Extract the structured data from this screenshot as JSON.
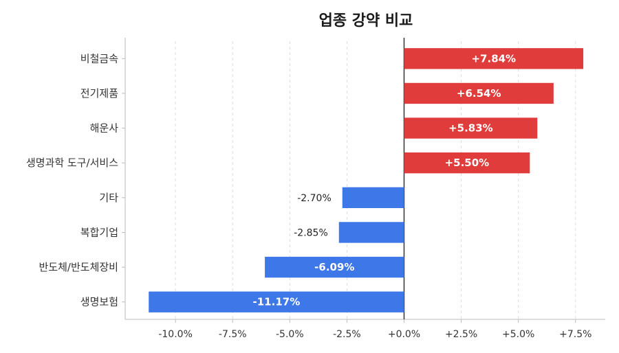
{
  "chart_data": {
    "type": "bar",
    "orientation": "horizontal",
    "title": "업종 강약 비교",
    "categories": [
      "비철금속",
      "전기제품",
      "해운사",
      "생명과학 도구/서비스",
      "기타",
      "복합기업",
      "반도체/반도체장비",
      "생명보험"
    ],
    "values": [
      7.84,
      6.54,
      5.83,
      5.5,
      -2.7,
      -2.85,
      -6.09,
      -11.17
    ],
    "value_labels": [
      "+7.84%",
      "+6.54%",
      "+5.83%",
      "+5.50%",
      "-2.70%",
      "-2.85%",
      "-6.09%",
      "-11.17%"
    ],
    "xlim": [
      -12.2,
      8.8
    ],
    "xticks": [
      -10,
      -7.5,
      -5,
      -2.5,
      0,
      2.5,
      5,
      7.5
    ],
    "xtick_labels": [
      "-10.0%",
      "-7.5%",
      "-5.0%",
      "-2.5%",
      "+0.0%",
      "+2.5%",
      "+5.0%",
      "+7.5%"
    ],
    "grid": "vertical dashed",
    "colors": {
      "positive": "#e03c3c",
      "negative": "#3d77e8",
      "zero_line": "#333333",
      "grid": "#dddddd",
      "axis": "#bbbbbb"
    }
  }
}
